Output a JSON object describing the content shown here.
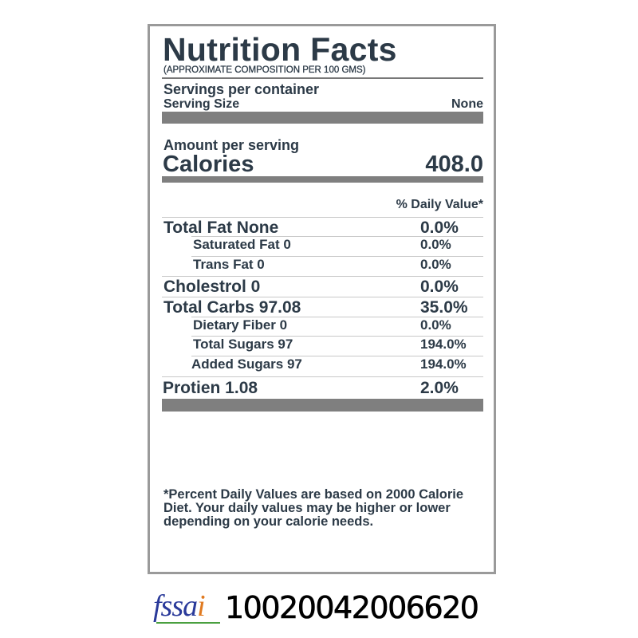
{
  "title": "Nutrition Facts",
  "subtitle": "(APPROXIMATE COMPOSITION PER 100 GMS)",
  "servings_per_container_label": "Servings per container",
  "serving_size_label": "Serving Size",
  "serving_size_value": "None",
  "amount_per_serving_label": "Amount per serving",
  "calories_label": "Calories",
  "calories_value": "408.0",
  "daily_value_header": "% Daily Value*",
  "nutrients": [
    {
      "label": "Total Fat None",
      "dv": "0.0%"
    },
    {
      "label": "Saturated Fat 0",
      "dv": "0.0%"
    },
    {
      "label": "Trans Fat 0",
      "dv": "0.0%"
    },
    {
      "label": "Cholestrol 0",
      "dv": "0.0%"
    },
    {
      "label": "Total Carbs 97.08",
      "dv": "35.0%"
    },
    {
      "label": "Dietary Fiber 0",
      "dv": "0.0%"
    },
    {
      "label": "Total Sugars 97",
      "dv": "194.0%"
    },
    {
      "label": "Added Sugars 97",
      "dv": "194.0%"
    },
    {
      "label": "Protien 1.08",
      "dv": "2.0%"
    }
  ],
  "footnote": "*Percent Daily Values are based on 2000 Calorie Diet. Your daily values may be higher or lower depending on your calorie needs.",
  "fssai": {
    "logo_text": "fssai",
    "license_number": "10020042006620"
  },
  "colors": {
    "text": "#2c3a47",
    "bar": "#7f7f7f",
    "border": "#9a9a9a"
  }
}
